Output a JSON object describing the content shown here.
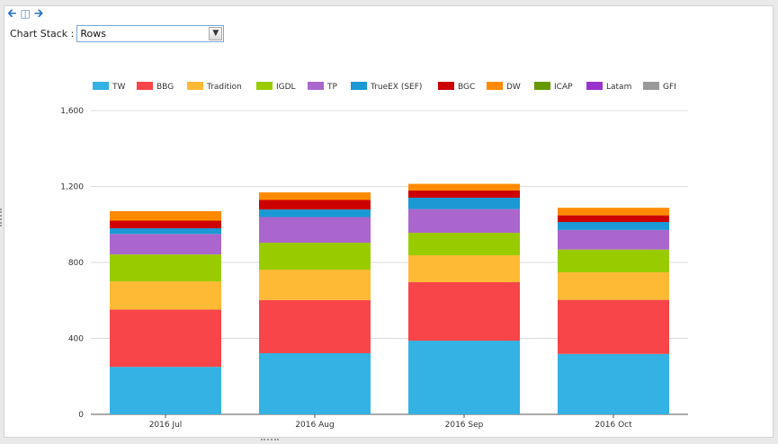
{
  "controls": {
    "back_icon": "arrow-left-icon",
    "page_icon": "book-icon",
    "forward_icon": "arrow-right-icon",
    "stack_label": "Chart Stack :",
    "stack_value": "Rows"
  },
  "chart_data": {
    "type": "bar",
    "stacked": true,
    "categories": [
      "2016 Jul",
      "2016 Aug",
      "2016 Sep",
      "2016 Oct"
    ],
    "ylim": [
      0,
      1600
    ],
    "yticks": [
      "0",
      "400",
      "800",
      "1,200",
      "1,600"
    ],
    "ytick_values": [
      0,
      400,
      800,
      1200,
      1600
    ],
    "grid": true,
    "legend_position": "top",
    "series": [
      {
        "name": "TW",
        "color": "#33b2e3",
        "values": [
          250,
          322,
          388,
          318
        ]
      },
      {
        "name": "BBG",
        "color": "#f74549",
        "values": [
          302,
          280,
          308,
          285
        ]
      },
      {
        "name": "Tradition",
        "color": "#feb935",
        "values": [
          148,
          160,
          142,
          145
        ]
      },
      {
        "name": "IGDL",
        "color": "#99cc00",
        "values": [
          142,
          142,
          118,
          120
        ]
      },
      {
        "name": "TP",
        "color": "#aa66cc",
        "values": [
          108,
          135,
          125,
          103
        ]
      },
      {
        "name": "TrueEX (SEF)",
        "color": "#1b99d4",
        "values": [
          30,
          40,
          60,
          42
        ]
      },
      {
        "name": "BGC",
        "color": "#cc0000",
        "values": [
          40,
          50,
          38,
          35
        ]
      },
      {
        "name": "DW",
        "color": "#ff8a00",
        "values": [
          50,
          40,
          35,
          40
        ]
      },
      {
        "name": "ICAP",
        "color": "#669900",
        "values": [
          0,
          0,
          0,
          0
        ]
      },
      {
        "name": "Latam",
        "color": "#9933cc",
        "values": [
          0,
          0,
          0,
          0
        ]
      },
      {
        "name": "GFI",
        "color": "#999999",
        "values": [
          0,
          0,
          0,
          0
        ]
      }
    ]
  }
}
